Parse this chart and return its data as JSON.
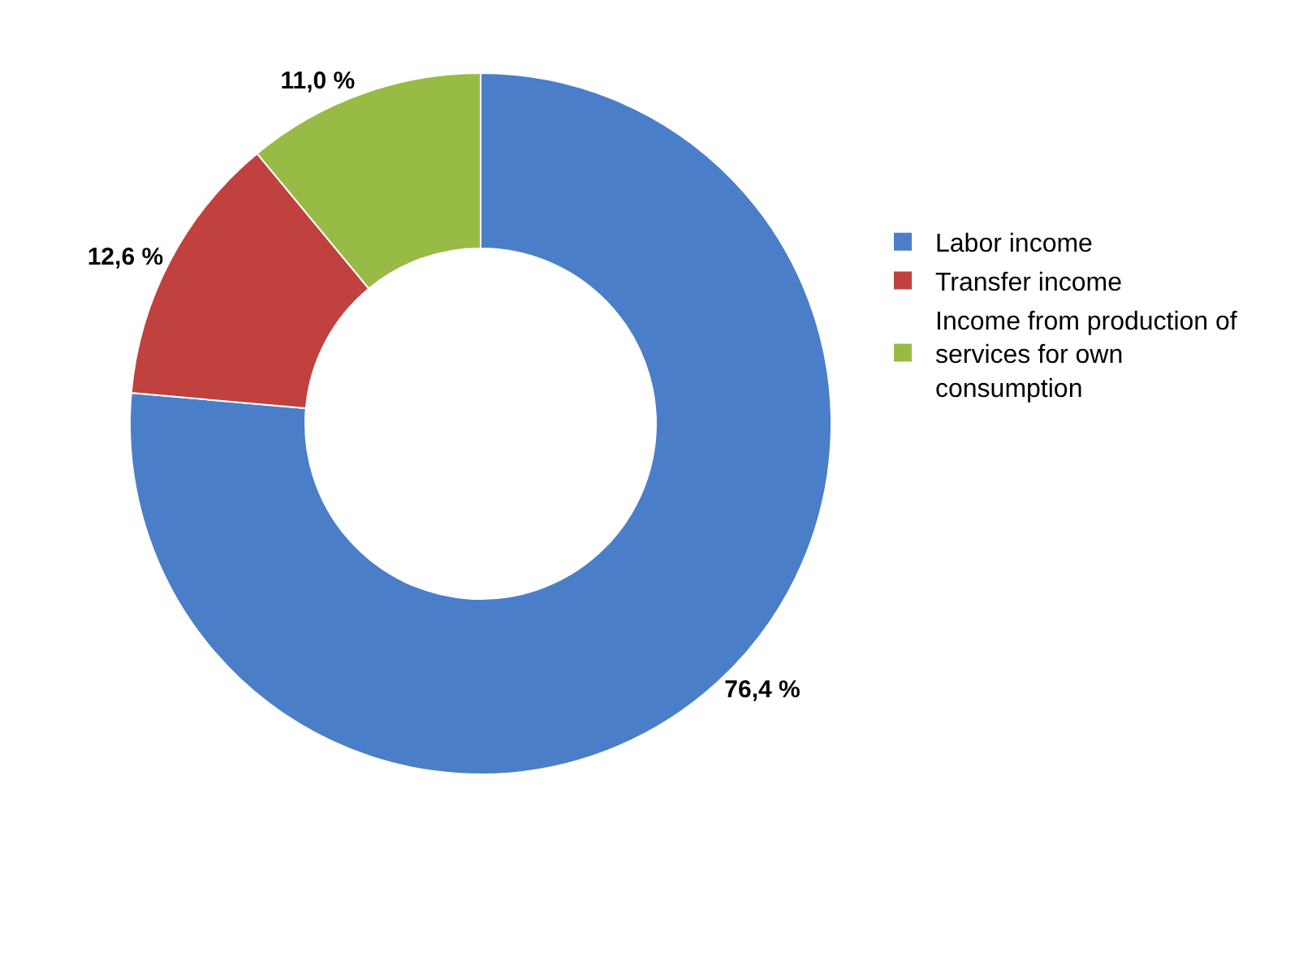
{
  "chart_data": {
    "type": "donut",
    "categories": [
      "Labor income",
      "Transfer income",
      "Income from production of services for own consumption"
    ],
    "values": [
      76.4,
      12.6,
      11.0
    ],
    "colors": [
      "#4a7ec8",
      "#c0413d",
      "#98bb45"
    ],
    "value_labels": [
      "76,4 %",
      "12,6 %",
      "11,0 %"
    ],
    "legend": "right"
  }
}
